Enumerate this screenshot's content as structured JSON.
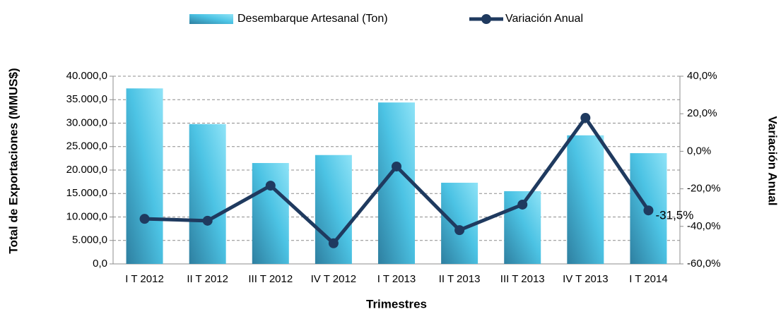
{
  "chart_data": {
    "type": "bar_line",
    "categories": [
      "I T 2012",
      "II T 2012",
      "III T 2012",
      "IV T 2012",
      "I T 2013",
      "II T 2013",
      "III T 2013",
      "IV T 2013",
      "I T 2014"
    ],
    "series": [
      {
        "name": "Desembarque Artesanal (Ton)",
        "color": "#4cc3e4",
        "type": "bar",
        "values": [
          37400,
          29800,
          21500,
          23200,
          34400,
          17300,
          15500,
          27400,
          23600
        ]
      },
      {
        "name": "Variación Anual",
        "color": "#1f3a5f",
        "type": "line",
        "axis": "y2",
        "values": [
          -36,
          -37,
          -18.3,
          -49,
          -8.1,
          -42,
          -28.4,
          17.8,
          -31.5
        ],
        "value_labels": [
          null,
          null,
          null,
          null,
          null,
          null,
          null,
          null,
          "-31,5%"
        ]
      }
    ],
    "ylabel": "Total de Exportaciones (MMUS$)",
    "y2label": "Variación Anual",
    "xlabel": "Trimestres",
    "ylim": [
      0,
      40000
    ],
    "yticks": [
      {
        "value": 0,
        "label": "0,0"
      },
      {
        "value": 5000,
        "label": "5.000,0"
      },
      {
        "value": 10000,
        "label": "10.000,0"
      },
      {
        "value": 15000,
        "label": "15.000,0"
      },
      {
        "value": 20000,
        "label": "20.000,0"
      },
      {
        "value": 25000,
        "label": "25.000,0"
      },
      {
        "value": 30000,
        "label": "30.000,0"
      },
      {
        "value": 35000,
        "label": "35.000,0"
      },
      {
        "value": 40000,
        "label": "40.000,0"
      }
    ],
    "y2lim": [
      -60,
      40
    ],
    "y2ticks": [
      {
        "value": -60,
        "label": "-60,0%"
      },
      {
        "value": -40,
        "label": "-40,0%"
      },
      {
        "value": -20,
        "label": "-20,0%"
      },
      {
        "value": 0,
        "label": "0,0%"
      },
      {
        "value": 20,
        "label": "20,0%"
      },
      {
        "value": 40,
        "label": "40,0%"
      }
    ],
    "grid": true,
    "legend": "top"
  }
}
